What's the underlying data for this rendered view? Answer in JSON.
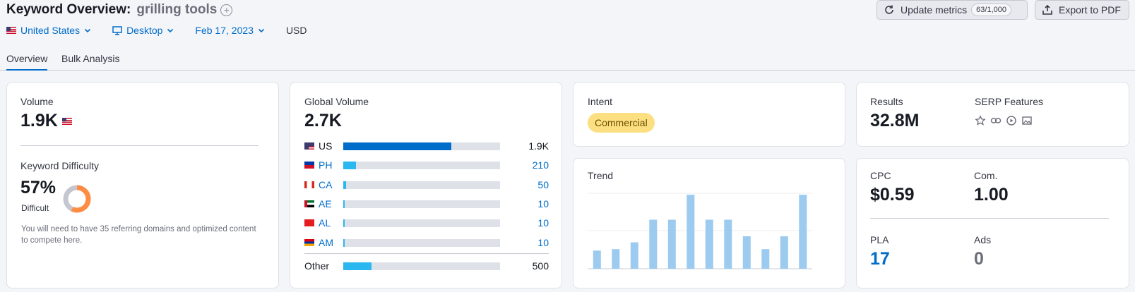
{
  "header": {
    "title": "Keyword Overview:",
    "keyword": "grilling tools",
    "add_label": "+",
    "update_label": "Update metrics",
    "update_counter": "63/1,000",
    "export_label": "Export to PDF"
  },
  "filters": {
    "country": "United States",
    "device": "Desktop",
    "date": "Feb 17, 2023",
    "currency": "USD"
  },
  "tabs": [
    "Overview",
    "Bulk Analysis"
  ],
  "volume": {
    "label": "Volume",
    "value": "1.9K"
  },
  "keyword_difficulty": {
    "label": "Keyword Difficulty",
    "value": "57%",
    "percent": 57,
    "level": "Difficult",
    "description": "You will need to have 35 referring domains and optimized content to compete here.",
    "color": "#ff8c43"
  },
  "global_volume": {
    "label": "Global Volume",
    "value": "2.7K",
    "countries": [
      {
        "code": "US",
        "value": "1.9K",
        "share": 0.69,
        "linked": false,
        "bar_color": "#006dca"
      },
      {
        "code": "PH",
        "value": "210",
        "share": 0.08,
        "linked": true,
        "bar_color": "#2bb7f0"
      },
      {
        "code": "CA",
        "value": "50",
        "share": 0.02,
        "linked": true,
        "bar_color": "#2bb7f0"
      },
      {
        "code": "AE",
        "value": "10",
        "share": 0.01,
        "linked": true,
        "bar_color": "#2bb7f0"
      },
      {
        "code": "AL",
        "value": "10",
        "share": 0.01,
        "linked": true,
        "bar_color": "#2bb7f0"
      },
      {
        "code": "AM",
        "value": "10",
        "share": 0.01,
        "linked": true,
        "bar_color": "#2bb7f0"
      }
    ],
    "other": {
      "label": "Other",
      "value": "500",
      "share": 0.18,
      "bar_color": "#2bb7f0"
    }
  },
  "intent": {
    "label": "Intent",
    "value": "Commercial"
  },
  "trend": {
    "label": "Trend",
    "bar_color": "#9ccbef",
    "values": [
      0.24,
      0.26,
      0.35,
      0.65,
      0.65,
      0.98,
      0.65,
      0.65,
      0.43,
      0.26,
      0.43,
      0.98
    ]
  },
  "results": {
    "label": "Results",
    "value": "32.8M"
  },
  "serp_features": {
    "label": "SERP Features",
    "icons": [
      "star-icon",
      "link-icon",
      "video-icon",
      "image-icon"
    ]
  },
  "cpc": {
    "label": "CPC",
    "value": "$0.59"
  },
  "competition": {
    "label": "Com.",
    "value": "1.00"
  },
  "pla": {
    "label": "PLA",
    "value": "17"
  },
  "ads": {
    "label": "Ads",
    "value": "0"
  }
}
